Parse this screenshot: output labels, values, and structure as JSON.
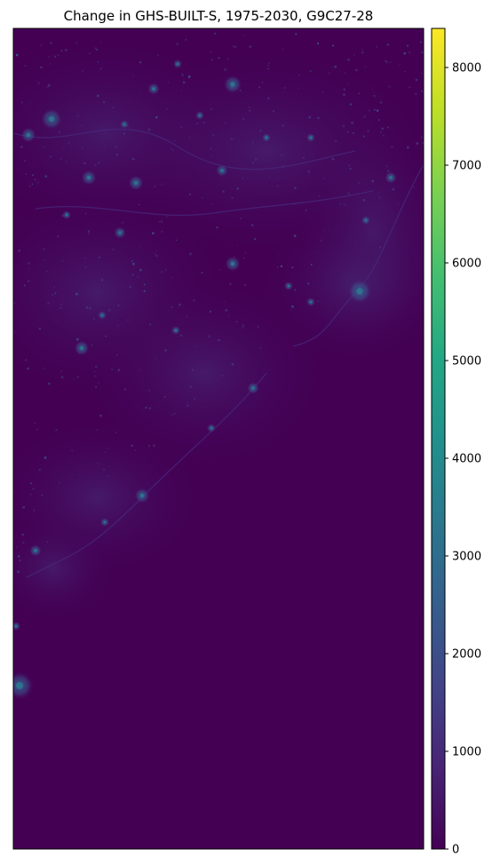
{
  "chart_data": {
    "type": "heatmap",
    "title": "Change in GHS-BUILT-S, 1975-2030, G9C27-28",
    "xlabel": "",
    "ylabel": "",
    "colormap": "viridis",
    "colorbar": {
      "range": [
        0,
        8400
      ],
      "ticks": [
        0,
        1000,
        2000,
        3000,
        4000,
        5000,
        6000,
        7000,
        8000
      ],
      "tick_labels": [
        "0",
        "1000",
        "2000",
        "3000",
        "4000",
        "5000",
        "6000",
        "7000",
        "8000"
      ]
    },
    "background_value": 0,
    "axes_visible": false,
    "colors": {
      "viridis_low": "#440154",
      "viridis_1000": "#482475",
      "viridis_2000": "#414487",
      "viridis_3000": "#355f8d",
      "viridis_4000": "#2a788e",
      "viridis_5000": "#21918c",
      "viridis_6000": "#22a884",
      "viridis_7000": "#44bf70",
      "viridis_8000": "#a0da39",
      "viridis_high": "#fde725"
    }
  }
}
